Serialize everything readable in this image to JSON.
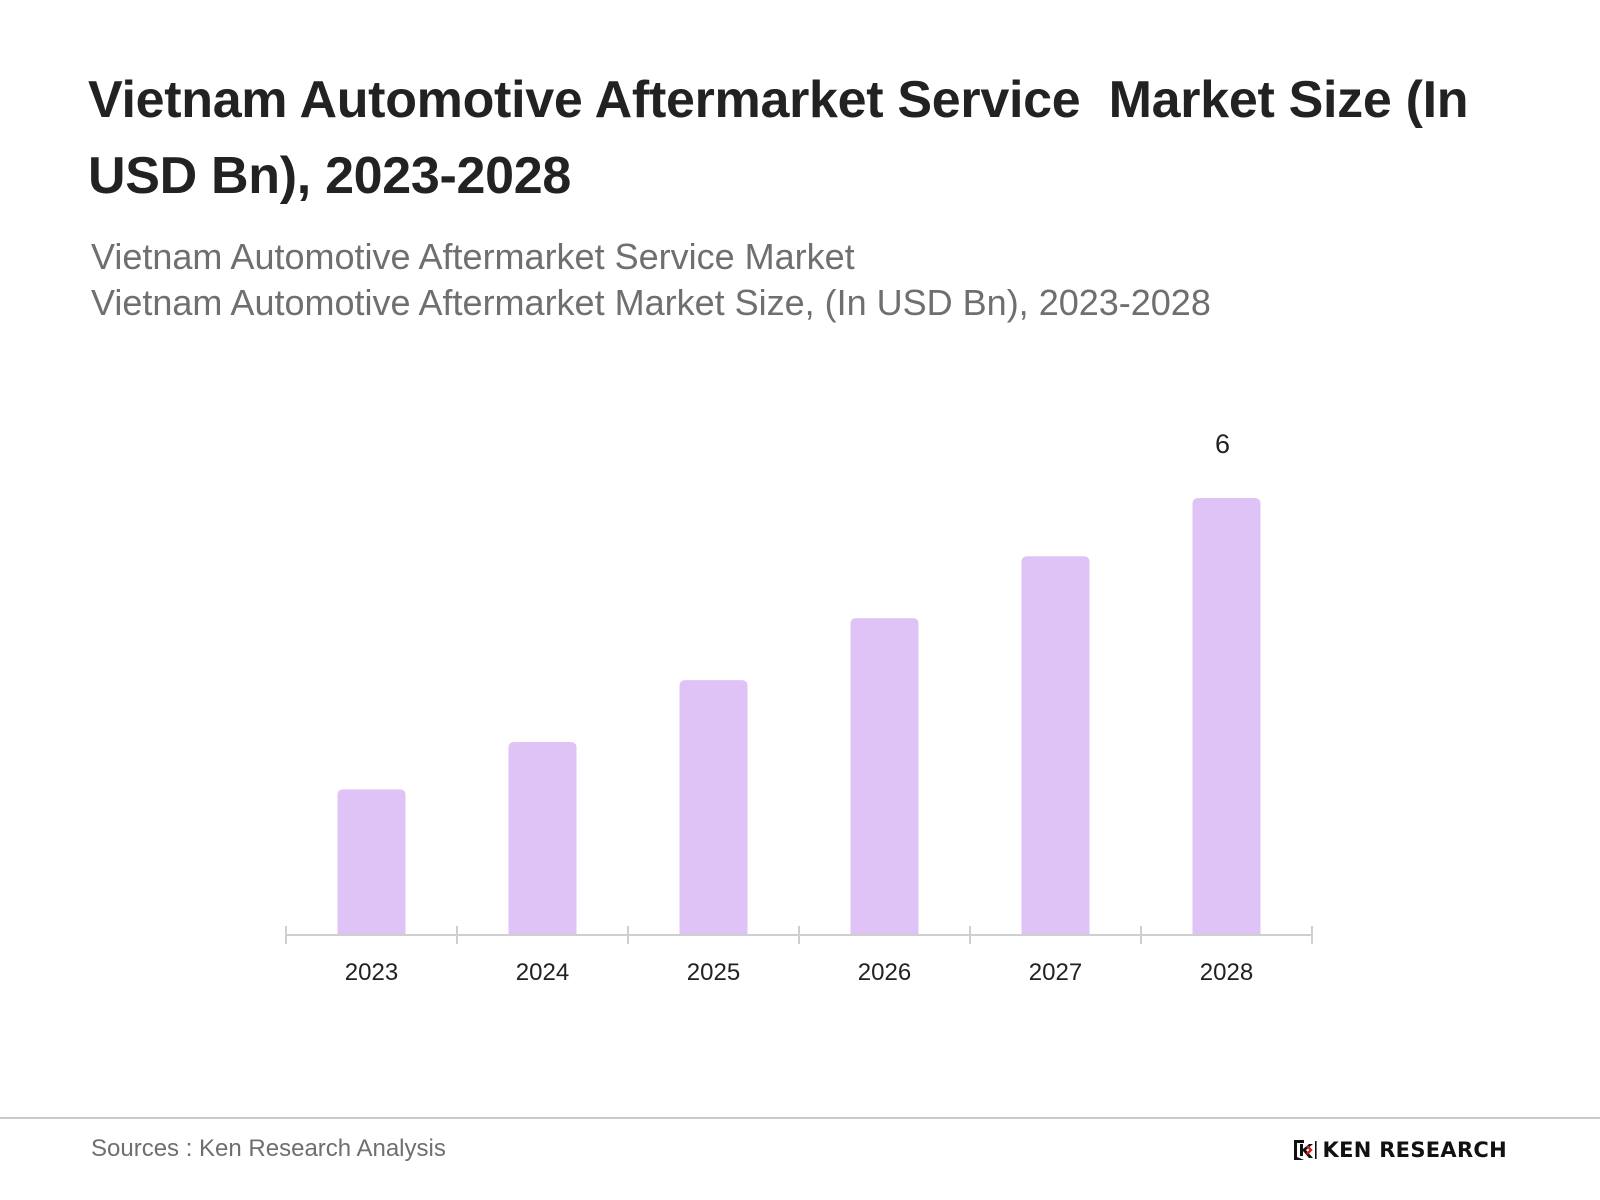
{
  "header": {
    "title": "Vietnam Automotive Aftermarket Service  Market Size (In USD Bn), 2023-2028",
    "subtitle_line1": "Vietnam Automotive Aftermarket Service Market",
    "subtitle_line2": "Vietnam Automotive Aftermarket Market Size, (In USD Bn), 2023-2028"
  },
  "footer": {
    "source": "Sources : Ken Research Analysis",
    "brand": "KEN RESEARCH"
  },
  "colors": {
    "bar": "#dfc3f6",
    "axis": "#cfcfcf",
    "text": "#222222",
    "muted": "#6f6f6f"
  },
  "chart_data": {
    "type": "bar",
    "title": "Vietnam Automotive Aftermarket Service  Market Size (In USD Bn), 2023-2028",
    "xlabel": "",
    "ylabel": "",
    "categories": [
      "2023",
      "2024",
      "2025",
      "2026",
      "2027",
      "2028"
    ],
    "series": [
      {
        "name": "Market Size (In USD Bn)",
        "values": [
          2.0,
          2.65,
          3.5,
          4.35,
          5.2,
          6.0
        ]
      }
    ],
    "data_labels": [
      "",
      "",
      "",
      "",
      "",
      "6"
    ],
    "ylim": [
      0,
      6
    ],
    "grid": false,
    "legend": "none"
  }
}
